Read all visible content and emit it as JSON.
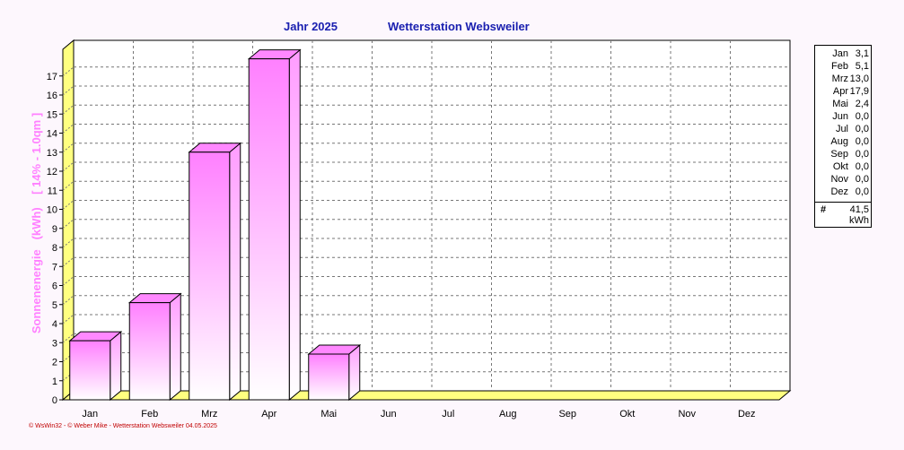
{
  "header": {
    "year_label": "Jahr  2025",
    "station_title": "Wetterstation Websweiler"
  },
  "chart_data": {
    "type": "bar",
    "title": "Wetterstation Websweiler",
    "subtitle": "Jahr  2025",
    "ylabel": "Sonnenenergie   (kWh)    [ 14% - 1.0qm ]",
    "xlabel": "",
    "categories": [
      "Jan",
      "Feb",
      "Mrz",
      "Apr",
      "Mai",
      "Jun",
      "Jul",
      "Aug",
      "Sep",
      "Okt",
      "Nov",
      "Dez"
    ],
    "values": [
      3.1,
      5.1,
      13.0,
      17.9,
      2.4,
      0.0,
      0.0,
      0.0,
      0.0,
      0.0,
      0.0,
      0.0
    ],
    "ylim": [
      0,
      18
    ],
    "yticks": [
      "0",
      "1",
      "2",
      "3",
      "4",
      "5",
      "6",
      "7",
      "8",
      "9",
      "10",
      "11",
      "12",
      "13",
      "14",
      "15",
      "16",
      "17"
    ],
    "grid": true,
    "legend_position": "right",
    "colors": {
      "bar_top": "#ff80ff",
      "bar_bottom": "#ffffff",
      "floor": "#ffff80",
      "ylabel": "#ff80ff"
    }
  },
  "legend": {
    "rows": [
      {
        "month": "Jan",
        "value": "3,1"
      },
      {
        "month": "Feb",
        "value": "5,1"
      },
      {
        "month": "Mrz",
        "value": "13,0"
      },
      {
        "month": "Apr",
        "value": "17,9"
      },
      {
        "month": "Mai",
        "value": "2,4"
      },
      {
        "month": "Jun",
        "value": "0,0"
      },
      {
        "month": "Jul",
        "value": "0,0"
      },
      {
        "month": "Aug",
        "value": "0,0"
      },
      {
        "month": "Sep",
        "value": "0,0"
      },
      {
        "month": "Okt",
        "value": "0,0"
      },
      {
        "month": "Nov",
        "value": "0,0"
      },
      {
        "month": "Dez",
        "value": "0,0"
      }
    ],
    "sum_marker": "#",
    "sum_value": "41,5",
    "sum_unit": "kWh"
  },
  "footer": {
    "credit": "© WsWin32  -  © Weber Mike  -  Wetterstation Websweiler   04.05.2025"
  }
}
